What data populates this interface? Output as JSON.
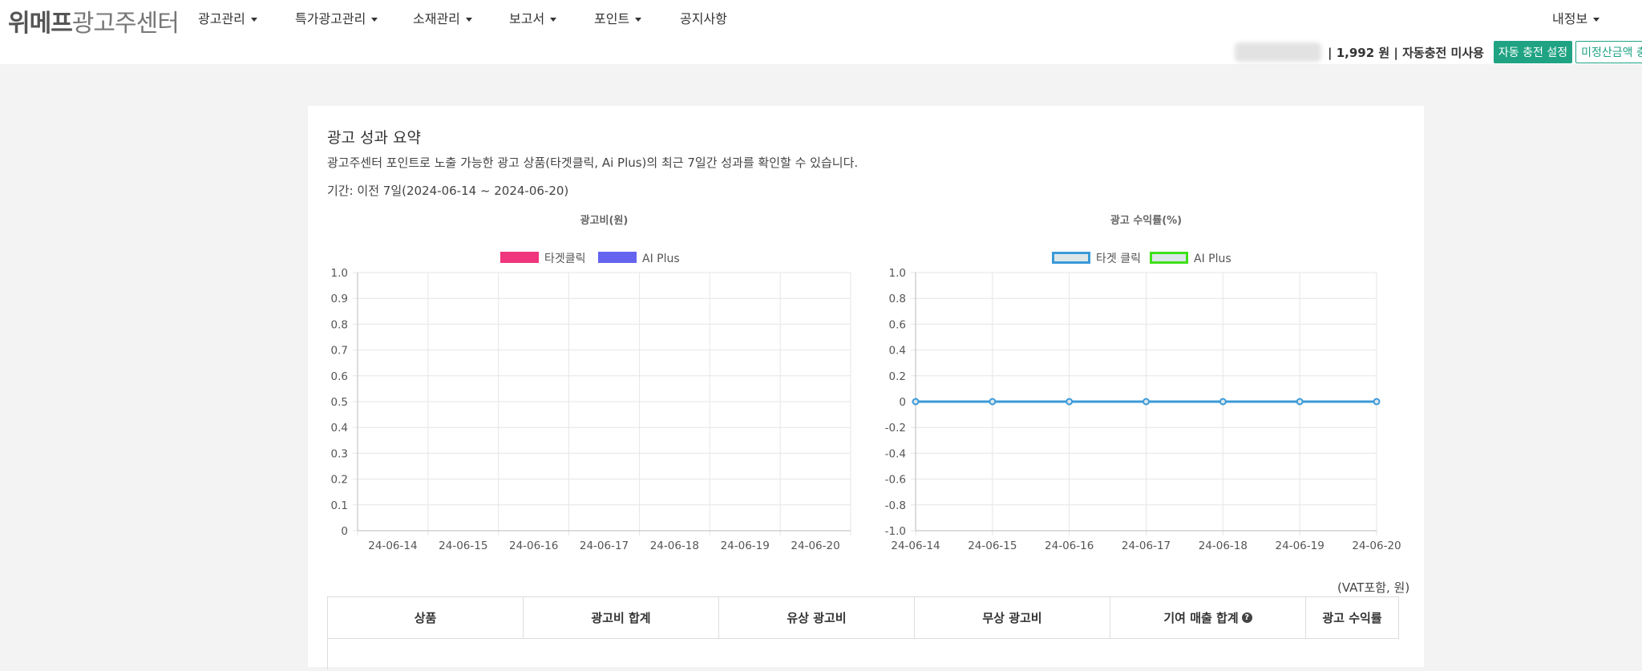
{
  "header": {
    "logo_bold": "위메프",
    "logo_rest": "광고주센터",
    "nav": [
      {
        "label": "광고관리",
        "dropdown": true
      },
      {
        "label": "특가광고관리",
        "dropdown": true
      },
      {
        "label": "소재관리",
        "dropdown": true
      },
      {
        "label": "보고서",
        "dropdown": true
      },
      {
        "label": "포인트",
        "dropdown": true
      },
      {
        "label": "공지사항",
        "dropdown": false
      }
    ],
    "my_info": "내정보",
    "account": {
      "balance": "| 1,992 원 | 자동충전 미사용",
      "auto_charge_button": "자동 충전 설정",
      "unsettled_button": "미정산금액 충전"
    }
  },
  "summary": {
    "title": "광고 성과 요약",
    "description": "광고주센터 포인트로 노출 가능한 광고 상품(타겟클릭, Ai Plus)의 최근 7일간 성과를 확인할 수 있습니다.",
    "period": "기간: 이전 7일(2024-06-14 ~ 2024-06-20)",
    "vat_note": "(VAT포함, 원)",
    "table_headers": [
      "상품",
      "광고비 합계",
      "유상 광고비",
      "무상 광고비",
      "기여 매출 합계",
      "광고 수익률"
    ],
    "help_icon": "question-circle-icon"
  },
  "chart_data": [
    {
      "type": "bar",
      "title": "광고비(원)",
      "categories": [
        "24-06-14",
        "24-06-15",
        "24-06-16",
        "24-06-17",
        "24-06-18",
        "24-06-19",
        "24-06-20"
      ],
      "series": [
        {
          "name": "타겟클릭",
          "color": "#f0367d",
          "values": [
            0,
            0,
            0,
            0,
            0,
            0,
            0
          ]
        },
        {
          "name": "AI Plus",
          "color": "#6464f0",
          "values": [
            0,
            0,
            0,
            0,
            0,
            0,
            0
          ]
        }
      ],
      "yticks": [
        "1.0",
        "0.9",
        "0.8",
        "0.7",
        "0.6",
        "0.5",
        "0.4",
        "0.3",
        "0.2",
        "0.1",
        "0"
      ],
      "ylim": [
        0,
        1
      ],
      "legend": "top",
      "grid": true
    },
    {
      "type": "line",
      "title": "광고 수익률(%)",
      "categories": [
        "24-06-14",
        "24-06-15",
        "24-06-16",
        "24-06-17",
        "24-06-18",
        "24-06-19",
        "24-06-20"
      ],
      "series": [
        {
          "name": "타겟 클릭",
          "color": "#3a9ad9",
          "values": [
            0,
            0,
            0,
            0,
            0,
            0,
            0
          ]
        },
        {
          "name": "AI Plus",
          "color": "#3fe01a",
          "values": [
            0,
            0,
            0,
            0,
            0,
            0,
            0
          ]
        }
      ],
      "yticks": [
        "1.0",
        "0.8",
        "0.6",
        "0.4",
        "0.2",
        "0",
        "-0.2",
        "-0.4",
        "-0.6",
        "-0.8",
        "-1.0"
      ],
      "ylim": [
        -1,
        1
      ],
      "legend": "top",
      "grid": true
    }
  ]
}
